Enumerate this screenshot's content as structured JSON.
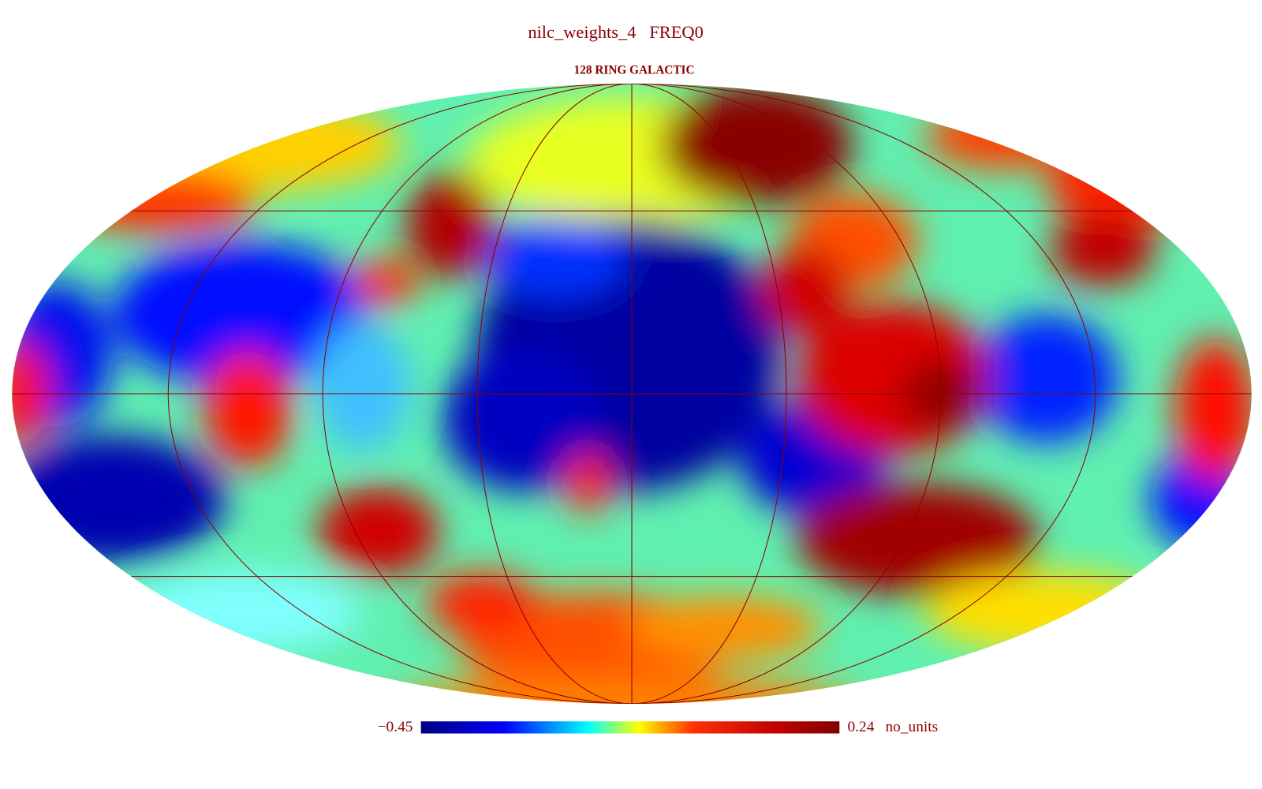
{
  "header": {
    "title": "nilc_weights_4   FREQ0",
    "subtitle": "128 RING GALACTIC"
  },
  "colorbar": {
    "min_label": "−0.45",
    "max_label": "0.24",
    "unit": "no_units"
  }
}
